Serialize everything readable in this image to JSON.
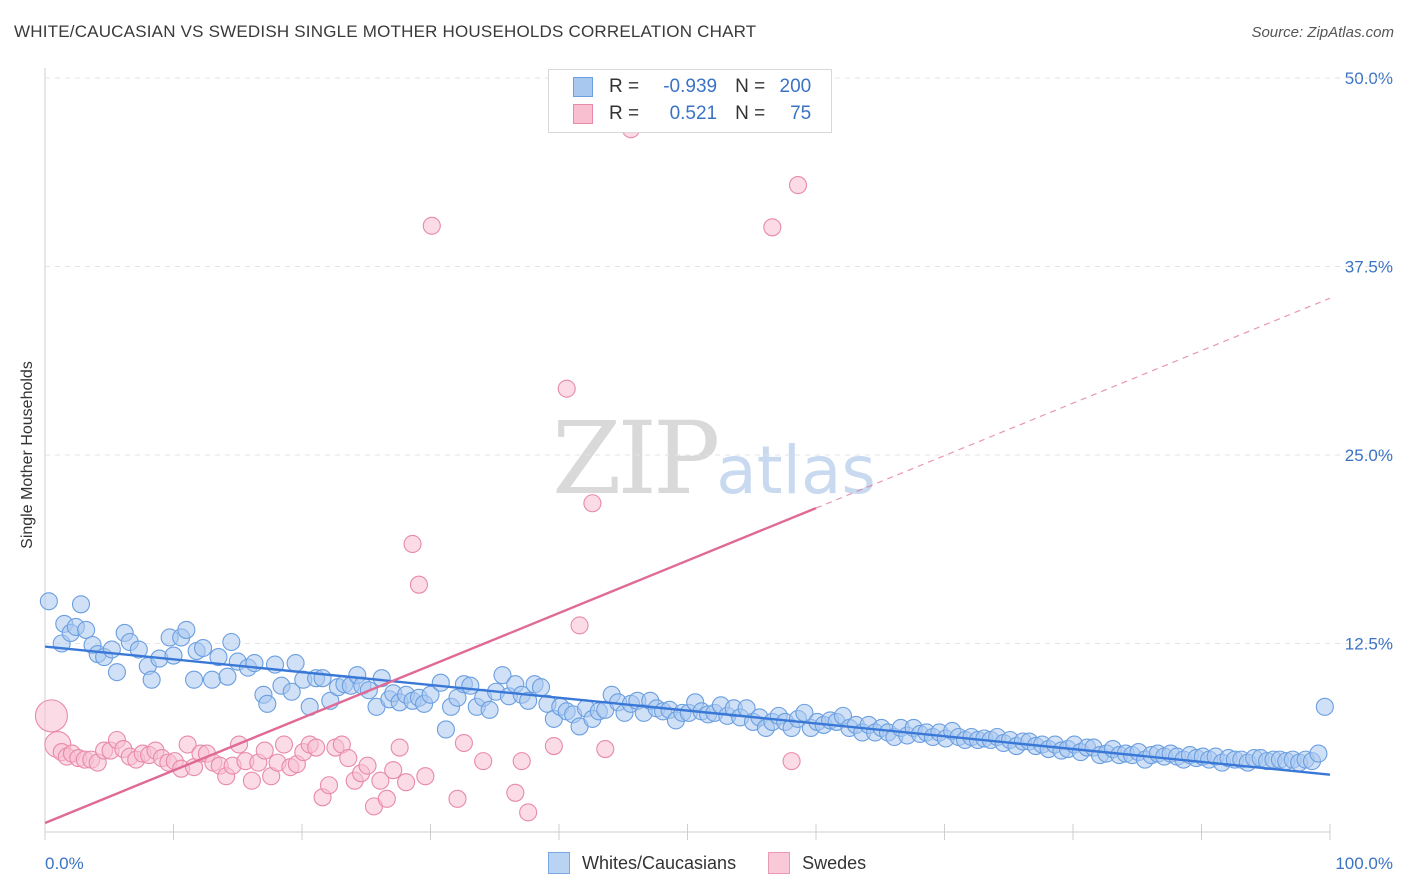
{
  "title": "WHITE/CAUCASIAN VS SWEDISH SINGLE MOTHER HOUSEHOLDS CORRELATION CHART",
  "source": "Source: ZipAtlas.com",
  "watermark": {
    "zip": "ZIP",
    "atlas": "atlas"
  },
  "legend": {
    "r_label": "R =",
    "n_label": "N =",
    "rows": [
      {
        "r": "-0.939",
        "n": "200",
        "fill": "#a9c8f0",
        "stroke": "#6b9fe0"
      },
      {
        "r": "0.521",
        "n": "75",
        "fill": "#f7bfd0",
        "stroke": "#e88aa8"
      }
    ]
  },
  "bottom_legend": [
    "Whites/Caucasians",
    "Swedes"
  ],
  "colors": {
    "blue": "#3a78d8",
    "blue_fill": "#a9c8f0",
    "pink": "#e06a96",
    "pink_fill": "#f7c0d2",
    "tick_text": "#3b73c4"
  },
  "chart_data": {
    "type": "scatter",
    "title": "WHITE/CAUCASIAN VS SWEDISH SINGLE MOTHER HOUSEHOLDS CORRELATION CHART",
    "xlabel": "",
    "ylabel": "Single Mother Households",
    "xlim": [
      0,
      100
    ],
    "ylim": [
      0,
      50
    ],
    "x_tick_labels": [
      "0.0%",
      "100.0%"
    ],
    "y_ticks": [
      12.5,
      25.0,
      37.5,
      50.0
    ],
    "y_tick_labels": [
      "12.5%",
      "25.0%",
      "37.5%",
      "50.0%"
    ],
    "grid": true,
    "series": [
      {
        "name": "Whites/Caucasians",
        "color": "#3a78d8",
        "trend": {
          "x": [
            0,
            100
          ],
          "y": [
            12.3,
            3.8
          ],
          "solid_until": 100
        },
        "points": [
          [
            0.3,
            15.3
          ],
          [
            1.3,
            12.5
          ],
          [
            1.5,
            13.8
          ],
          [
            2,
            13.2
          ],
          [
            2.4,
            13.6
          ],
          [
            2.8,
            15.1
          ],
          [
            3.2,
            13.4
          ],
          [
            3.7,
            12.4
          ],
          [
            4.1,
            11.8
          ],
          [
            4.6,
            11.6
          ],
          [
            5.2,
            12.1
          ],
          [
            5.6,
            10.6
          ],
          [
            6.2,
            13.2
          ],
          [
            6.6,
            12.6
          ],
          [
            7.3,
            12.1
          ],
          [
            8,
            11
          ],
          [
            8.3,
            10.1
          ],
          [
            8.9,
            11.5
          ],
          [
            9.7,
            12.9
          ],
          [
            10,
            11.7
          ],
          [
            10.6,
            12.9
          ],
          [
            11,
            13.4
          ],
          [
            11.6,
            10.1
          ],
          [
            11.8,
            12
          ],
          [
            12.3,
            12.2
          ],
          [
            13,
            10.1
          ],
          [
            13.5,
            11.6
          ],
          [
            14.2,
            10.3
          ],
          [
            14.5,
            12.6
          ],
          [
            15,
            11.3
          ],
          [
            15.8,
            10.9
          ],
          [
            16.3,
            11.2
          ],
          [
            17,
            9.1
          ],
          [
            17.3,
            8.5
          ],
          [
            17.9,
            11.1
          ],
          [
            18.4,
            9.7
          ],
          [
            19.2,
            9.3
          ],
          [
            19.5,
            11.2
          ],
          [
            20.1,
            10.1
          ],
          [
            20.6,
            8.3
          ],
          [
            21.1,
            10.2
          ],
          [
            21.6,
            10.2
          ],
          [
            22.2,
            8.7
          ],
          [
            22.8,
            9.6
          ],
          [
            23.3,
            9.8
          ],
          [
            23.8,
            9.7
          ],
          [
            24.3,
            10.4
          ],
          [
            24.7,
            9.7
          ],
          [
            25.2,
            9.4
          ],
          [
            25.8,
            8.3
          ],
          [
            26.2,
            10.2
          ],
          [
            26.8,
            8.8
          ],
          [
            27.1,
            9.2
          ],
          [
            27.6,
            8.6
          ],
          [
            28.1,
            9.1
          ],
          [
            28.6,
            8.7
          ],
          [
            29.1,
            8.9
          ],
          [
            29.5,
            8.5
          ],
          [
            30,
            9.1
          ],
          [
            30.8,
            9.9
          ],
          [
            31.2,
            6.8
          ],
          [
            31.6,
            8.3
          ],
          [
            32.1,
            8.9
          ],
          [
            32.6,
            9.8
          ],
          [
            33.1,
            9.7
          ],
          [
            33.6,
            8.3
          ],
          [
            34.1,
            8.9
          ],
          [
            34.6,
            8.1
          ],
          [
            35.1,
            9.3
          ],
          [
            35.6,
            10.4
          ],
          [
            36.1,
            9
          ],
          [
            36.6,
            9.8
          ],
          [
            37.1,
            9.1
          ],
          [
            37.6,
            8.7
          ],
          [
            38.1,
            9.8
          ],
          [
            38.6,
            9.6
          ],
          [
            39.1,
            8.5
          ],
          [
            39.6,
            7.5
          ],
          [
            40.1,
            8.3
          ],
          [
            40.6,
            8
          ],
          [
            41.1,
            7.8
          ],
          [
            41.6,
            7
          ],
          [
            42.1,
            8.2
          ],
          [
            42.6,
            7.5
          ],
          [
            43.1,
            8
          ],
          [
            43.6,
            8.1
          ],
          [
            44.1,
            9.1
          ],
          [
            44.6,
            8.6
          ],
          [
            45.1,
            7.9
          ],
          [
            45.6,
            8.5
          ],
          [
            46.1,
            8.7
          ],
          [
            46.6,
            7.9
          ],
          [
            47.1,
            8.7
          ],
          [
            47.6,
            8.2
          ],
          [
            48.1,
            8
          ],
          [
            48.6,
            8.1
          ],
          [
            49.1,
            7.4
          ],
          [
            49.6,
            7.9
          ],
          [
            50.1,
            7.9
          ],
          [
            50.6,
            8.6
          ],
          [
            51.1,
            8
          ],
          [
            51.6,
            7.8
          ],
          [
            52.1,
            7.9
          ],
          [
            52.6,
            8.4
          ],
          [
            53.1,
            7.7
          ],
          [
            53.6,
            8.2
          ],
          [
            54.1,
            7.6
          ],
          [
            54.6,
            8.2
          ],
          [
            55.1,
            7.3
          ],
          [
            55.6,
            7.6
          ],
          [
            56.1,
            6.9
          ],
          [
            56.6,
            7.3
          ],
          [
            57.1,
            7.7
          ],
          [
            57.6,
            7.3
          ],
          [
            58.1,
            6.9
          ],
          [
            58.6,
            7.5
          ],
          [
            59.1,
            7.9
          ],
          [
            59.6,
            6.9
          ],
          [
            60.1,
            7.3
          ],
          [
            60.6,
            7.1
          ],
          [
            61.1,
            7.4
          ],
          [
            61.6,
            7.3
          ],
          [
            62.1,
            7.7
          ],
          [
            62.6,
            6.9
          ],
          [
            63.1,
            7.1
          ],
          [
            63.6,
            6.6
          ],
          [
            64.1,
            7.1
          ],
          [
            64.6,
            6.6
          ],
          [
            65.1,
            6.9
          ],
          [
            65.6,
            6.6
          ],
          [
            66.1,
            6.3
          ],
          [
            66.6,
            6.9
          ],
          [
            67.1,
            6.4
          ],
          [
            67.6,
            6.9
          ],
          [
            68.1,
            6.5
          ],
          [
            68.6,
            6.6
          ],
          [
            69.1,
            6.3
          ],
          [
            69.6,
            6.6
          ],
          [
            70.1,
            6.2
          ],
          [
            70.6,
            6.7
          ],
          [
            71.1,
            6.3
          ],
          [
            71.6,
            6.1
          ],
          [
            72.1,
            6.3
          ],
          [
            72.6,
            6.1
          ],
          [
            73.1,
            6.2
          ],
          [
            73.6,
            6.1
          ],
          [
            74.1,
            6.3
          ],
          [
            74.6,
            5.9
          ],
          [
            75.1,
            6.1
          ],
          [
            75.6,
            5.7
          ],
          [
            76.1,
            6
          ],
          [
            76.6,
            6
          ],
          [
            77.1,
            5.7
          ],
          [
            77.6,
            5.8
          ],
          [
            78.1,
            5.5
          ],
          [
            78.6,
            5.8
          ],
          [
            79.1,
            5.4
          ],
          [
            79.6,
            5.5
          ],
          [
            80.1,
            5.8
          ],
          [
            80.6,
            5.3
          ],
          [
            81.1,
            5.6
          ],
          [
            81.6,
            5.6
          ],
          [
            82.1,
            5.1
          ],
          [
            82.6,
            5.2
          ],
          [
            83.1,
            5.5
          ],
          [
            83.6,
            5.1
          ],
          [
            84.1,
            5.2
          ],
          [
            84.6,
            5.1
          ],
          [
            85.1,
            5.3
          ],
          [
            85.6,
            4.8
          ],
          [
            86.1,
            5.1
          ],
          [
            86.6,
            5.2
          ],
          [
            87.1,
            5
          ],
          [
            87.6,
            5.2
          ],
          [
            88.1,
            5
          ],
          [
            88.6,
            4.8
          ],
          [
            89.1,
            5.1
          ],
          [
            89.6,
            4.9
          ],
          [
            90.1,
            5
          ],
          [
            90.6,
            4.8
          ],
          [
            91.1,
            5
          ],
          [
            91.6,
            4.6
          ],
          [
            92.1,
            4.9
          ],
          [
            92.6,
            4.8
          ],
          [
            93.1,
            4.8
          ],
          [
            93.6,
            4.6
          ],
          [
            94.1,
            4.9
          ],
          [
            94.6,
            4.9
          ],
          [
            95.1,
            4.7
          ],
          [
            95.6,
            4.8
          ],
          [
            96.1,
            4.8
          ],
          [
            96.6,
            4.7
          ],
          [
            97.1,
            4.8
          ],
          [
            97.6,
            4.6
          ],
          [
            98.1,
            4.8
          ],
          [
            98.6,
            4.7
          ],
          [
            99.1,
            5.2
          ],
          [
            99.6,
            8.3
          ]
        ]
      },
      {
        "name": "Swedes",
        "color": "#e06a96",
        "trend": {
          "x": [
            0,
            100
          ],
          "y": [
            0.6,
            35.4
          ],
          "solid_until": 60
        },
        "points": [
          [
            0.5,
            7.7
          ],
          [
            1,
            5.8
          ],
          [
            1.3,
            5.3
          ],
          [
            1.7,
            5
          ],
          [
            2.1,
            5.2
          ],
          [
            2.6,
            4.9
          ],
          [
            3.1,
            4.8
          ],
          [
            3.6,
            4.8
          ],
          [
            4.1,
            4.6
          ],
          [
            4.6,
            5.4
          ],
          [
            5.1,
            5.4
          ],
          [
            5.6,
            6.1
          ],
          [
            6.1,
            5.5
          ],
          [
            6.6,
            5
          ],
          [
            7.1,
            4.8
          ],
          [
            7.6,
            5.2
          ],
          [
            8.1,
            5.1
          ],
          [
            8.6,
            5.4
          ],
          [
            9.1,
            4.9
          ],
          [
            9.6,
            4.6
          ],
          [
            10.1,
            4.7
          ],
          [
            10.6,
            4.2
          ],
          [
            11.1,
            5.8
          ],
          [
            11.6,
            4.3
          ],
          [
            12.1,
            5.2
          ],
          [
            12.6,
            5.2
          ],
          [
            13.1,
            4.6
          ],
          [
            13.6,
            4.4
          ],
          [
            14.1,
            3.7
          ],
          [
            14.6,
            4.4
          ],
          [
            15.1,
            5.8
          ],
          [
            15.6,
            4.7
          ],
          [
            16.1,
            3.4
          ],
          [
            16.6,
            4.6
          ],
          [
            17.1,
            5.4
          ],
          [
            17.6,
            3.7
          ],
          [
            18.1,
            4.6
          ],
          [
            18.6,
            5.8
          ],
          [
            19.1,
            4.3
          ],
          [
            19.6,
            4.5
          ],
          [
            20.1,
            5.3
          ],
          [
            20.6,
            5.8
          ],
          [
            21.1,
            5.6
          ],
          [
            21.6,
            2.3
          ],
          [
            22.1,
            3.1
          ],
          [
            22.6,
            5.6
          ],
          [
            23.1,
            5.8
          ],
          [
            23.6,
            4.9
          ],
          [
            24.1,
            3.4
          ],
          [
            24.6,
            3.9
          ],
          [
            25.1,
            4.4
          ],
          [
            25.6,
            1.7
          ],
          [
            26.1,
            3.4
          ],
          [
            26.6,
            2.2
          ],
          [
            27.1,
            4.1
          ],
          [
            27.6,
            5.6
          ],
          [
            28.1,
            3.3
          ],
          [
            28.6,
            19.1
          ],
          [
            29.1,
            16.4
          ],
          [
            29.6,
            3.7
          ],
          [
            30.1,
            40.2
          ],
          [
            32.1,
            2.2
          ],
          [
            32.6,
            5.9
          ],
          [
            34.1,
            4.7
          ],
          [
            36.6,
            2.6
          ],
          [
            37.1,
            4.7
          ],
          [
            37.6,
            1.3
          ],
          [
            39.6,
            5.7
          ],
          [
            40.6,
            29.4
          ],
          [
            41.6,
            13.7
          ],
          [
            42.6,
            21.8
          ],
          [
            43.6,
            5.5
          ],
          [
            45.6,
            46.6
          ],
          [
            56.6,
            40.1
          ],
          [
            58.6,
            42.9
          ],
          [
            58.1,
            4.7
          ]
        ]
      }
    ]
  }
}
